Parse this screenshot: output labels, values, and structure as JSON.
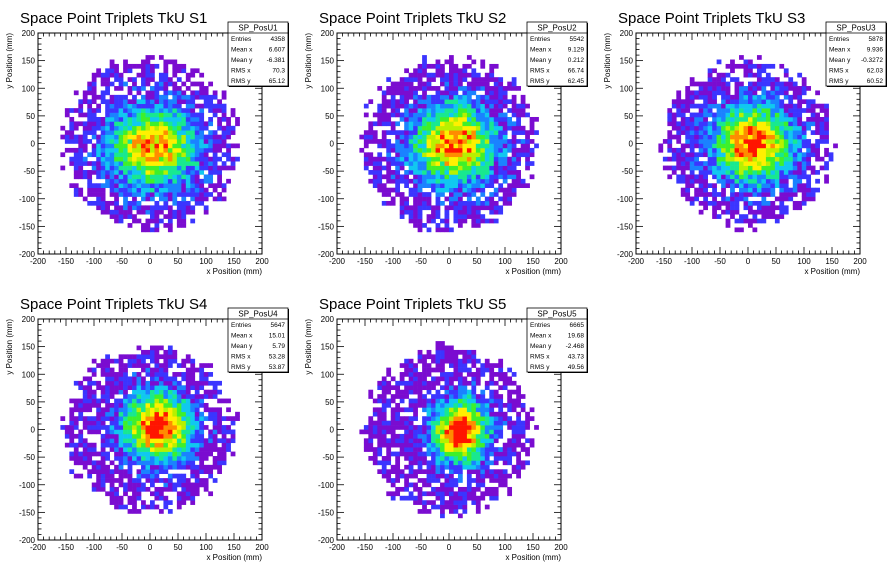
{
  "colors": {
    "palette": [
      "#7a0cd0",
      "#3b35ff",
      "#1a82ff",
      "#10c8f0",
      "#18e890",
      "#3ef02a",
      "#b8f000",
      "#fff000",
      "#ff8c00",
      "#ff1500"
    ],
    "frame": "#000000",
    "background": "#ffffff"
  },
  "chart_data": [
    {
      "type": "heatmap",
      "title": "Space Point Triplets TkU S1",
      "xlabel": "x Position (mm)",
      "ylabel": "y Position (mm)",
      "xlim": [
        -200,
        200
      ],
      "ylim": [
        -200,
        200
      ],
      "xticks": [
        -200,
        -150,
        -100,
        -50,
        0,
        50,
        100,
        150,
        200
      ],
      "yticks": [
        -200,
        -150,
        -100,
        -50,
        0,
        50,
        100,
        150,
        200
      ],
      "stats": {
        "name": "SP_PosU1",
        "rows": [
          [
            "Entries",
            "4358"
          ],
          [
            "Mean x",
            "6.607"
          ],
          [
            "Mean y",
            "-6.381"
          ],
          [
            "RMS x",
            "70.3"
          ],
          [
            "RMS y",
            "65.12"
          ]
        ]
      },
      "distribution": {
        "center": [
          6.6,
          -6.4
        ],
        "spread": [
          70.3,
          65.1
        ],
        "extent_radius": 155,
        "peak_level": 0.82
      }
    },
    {
      "type": "heatmap",
      "title": "Space Point Triplets TkU S2",
      "xlabel": "x Position (mm)",
      "ylabel": "y Position (mm)",
      "xlim": [
        -200,
        200
      ],
      "ylim": [
        -200,
        200
      ],
      "xticks": [
        -200,
        -150,
        -100,
        -50,
        0,
        50,
        100,
        150,
        200
      ],
      "yticks": [
        -200,
        -150,
        -100,
        -50,
        0,
        50,
        100,
        150,
        200
      ],
      "stats": {
        "name": "SP_PosU2",
        "rows": [
          [
            "Entries",
            "5542"
          ],
          [
            "Mean x",
            "9.129"
          ],
          [
            "Mean y",
            "0.212"
          ],
          [
            "RMS x",
            "66.74"
          ],
          [
            "RMS y",
            "62.45"
          ]
        ]
      },
      "distribution": {
        "center": [
          9.1,
          0.2
        ],
        "spread": [
          66.7,
          62.5
        ],
        "extent_radius": 155,
        "peak_level": 0.9
      }
    },
    {
      "type": "heatmap",
      "title": "Space Point Triplets TkU S3",
      "xlabel": "x Position (mm)",
      "ylabel": "y Position (mm)",
      "xlim": [
        -200,
        200
      ],
      "ylim": [
        -200,
        200
      ],
      "xticks": [
        -200,
        -150,
        -100,
        -50,
        0,
        50,
        100,
        150,
        200
      ],
      "yticks": [
        -200,
        -150,
        -100,
        -50,
        0,
        50,
        100,
        150,
        200
      ],
      "stats": {
        "name": "SP_PosU3",
        "rows": [
          [
            "Entries",
            "5878"
          ],
          [
            "Mean x",
            "9.936"
          ],
          [
            "Mean y",
            "-0.3272"
          ],
          [
            "RMS x",
            "62.03"
          ],
          [
            "RMS y",
            "60.52"
          ]
        ]
      },
      "distribution": {
        "center": [
          9.9,
          -0.3
        ],
        "spread": [
          62.0,
          60.5
        ],
        "extent_radius": 150,
        "peak_level": 0.95
      }
    },
    {
      "type": "heatmap",
      "title": "Space Point Triplets TkU S4",
      "xlabel": "x Position (mm)",
      "ylabel": "y Position (mm)",
      "xlim": [
        -200,
        200
      ],
      "ylim": [
        -200,
        200
      ],
      "xticks": [
        -200,
        -150,
        -100,
        -50,
        0,
        50,
        100,
        150,
        200
      ],
      "yticks": [
        -200,
        -150,
        -100,
        -50,
        0,
        50,
        100,
        150,
        200
      ],
      "stats": {
        "name": "SP_PosU4",
        "rows": [
          [
            "Entries",
            "5647"
          ],
          [
            "Mean x",
            "15.01"
          ],
          [
            "Mean y",
            "5.79"
          ],
          [
            "RMS x",
            "53.28"
          ],
          [
            "RMS y",
            "53.87"
          ]
        ]
      },
      "distribution": {
        "center": [
          15.0,
          5.8
        ],
        "spread": [
          53.3,
          53.9
        ],
        "extent_radius": 150,
        "peak_level": 1.0
      }
    },
    {
      "type": "heatmap",
      "title": "Space Point Triplets TkU S5",
      "xlabel": "x Position (mm)",
      "ylabel": "y Position (mm)",
      "xlim": [
        -200,
        200
      ],
      "ylim": [
        -200,
        200
      ],
      "xticks": [
        -200,
        -150,
        -100,
        -50,
        0,
        50,
        100,
        150,
        200
      ],
      "yticks": [
        -200,
        -150,
        -100,
        -50,
        0,
        50,
        100,
        150,
        200
      ],
      "stats": {
        "name": "SP_PosU5",
        "rows": [
          [
            "Entries",
            "6665"
          ],
          [
            "Mean x",
            "19.68"
          ],
          [
            "Mean y",
            "-2.468"
          ],
          [
            "RMS x",
            "43.73"
          ],
          [
            "RMS y",
            "49.56"
          ]
        ]
      },
      "distribution": {
        "center": [
          19.7,
          -2.5
        ],
        "spread": [
          43.7,
          49.6
        ],
        "extent_radius": 150,
        "peak_level": 1.0
      }
    }
  ]
}
